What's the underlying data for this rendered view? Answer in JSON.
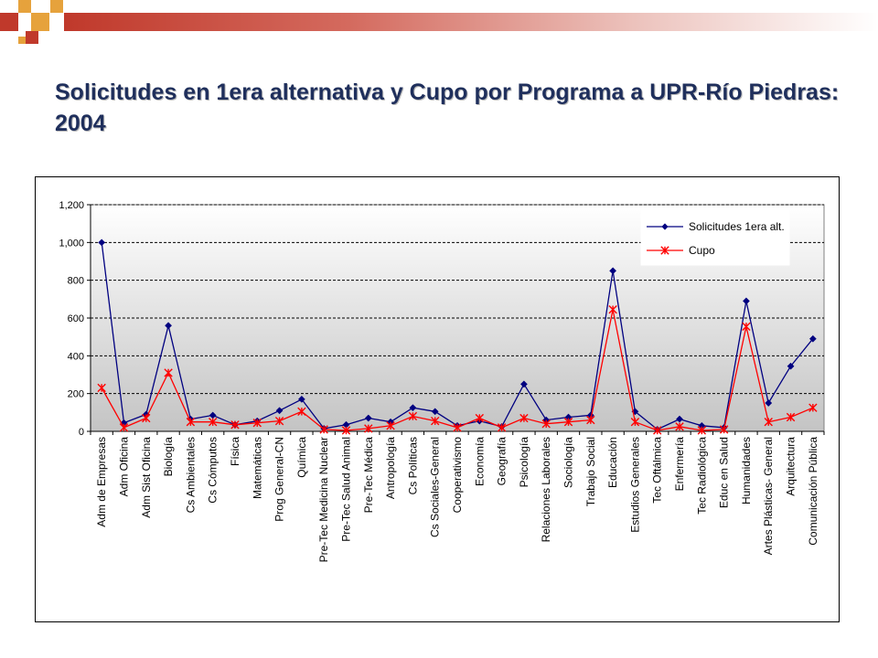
{
  "slide": {
    "title": "Solicitudes en 1era alternativa y Cupo por Programa a UPR-Río Piedras: 2004"
  },
  "colors": {
    "accent_dark": "#c0392b",
    "accent_gold": "#e6a23c",
    "title": "#1f2f5c",
    "series_solicitudes": "#000080",
    "series_cupo": "#ff0000",
    "plot_background": "#c8c8c8"
  },
  "chart_data": {
    "type": "line",
    "title": "",
    "xlabel": "",
    "ylabel": "",
    "ylim": [
      0,
      1200
    ],
    "yticks": [
      "0",
      "200",
      "400",
      "600",
      "800",
      "1,000",
      "1,200"
    ],
    "grid": true,
    "legend_position": "top-right",
    "categories": [
      "Adm de Empresas",
      "Adm Oficina",
      "Adm Sist Oficina",
      "Biología",
      "Cs Ambientales",
      "Cs Cómputos",
      "Física",
      "Matemáticas",
      "Prog General-CN",
      "Química",
      "Pre-Tec Medicina Nuclear",
      "Pre-Tec Salud Animal",
      "Pre-Tec Médica",
      "Antropología",
      "Cs Políticas",
      "Cs Sociales-General",
      "Cooperativismo",
      "Economía",
      "Geografía",
      "Psicología",
      "Relaciones Laborales",
      "Sociología",
      "Trabajo Social",
      "Educación",
      "Estudios Generales",
      "Tec Oftálmica",
      "Enfermería",
      "Tec Radiológica",
      "Educ en Salud",
      "Humanidades",
      "Artes Plásticas- General",
      "Arquitectura",
      "Comunicación Pública"
    ],
    "series": [
      {
        "name": "Solicitudes 1era alt.",
        "color": "#000080",
        "marker": "diamond",
        "values": [
          1000,
          45,
          90,
          560,
          65,
          85,
          35,
          55,
          110,
          170,
          15,
          35,
          70,
          50,
          125,
          105,
          30,
          55,
          25,
          250,
          60,
          75,
          85,
          850,
          105,
          10,
          65,
          30,
          20,
          690,
          150,
          345,
          490
        ]
      },
      {
        "name": "Cupo",
        "color": "#ff0000",
        "marker": "asterisk",
        "values": [
          230,
          20,
          70,
          310,
          50,
          50,
          35,
          45,
          55,
          105,
          10,
          5,
          15,
          30,
          80,
          55,
          20,
          70,
          20,
          70,
          40,
          50,
          60,
          645,
          50,
          5,
          25,
          5,
          10,
          555,
          50,
          75,
          125
        ]
      }
    ]
  }
}
